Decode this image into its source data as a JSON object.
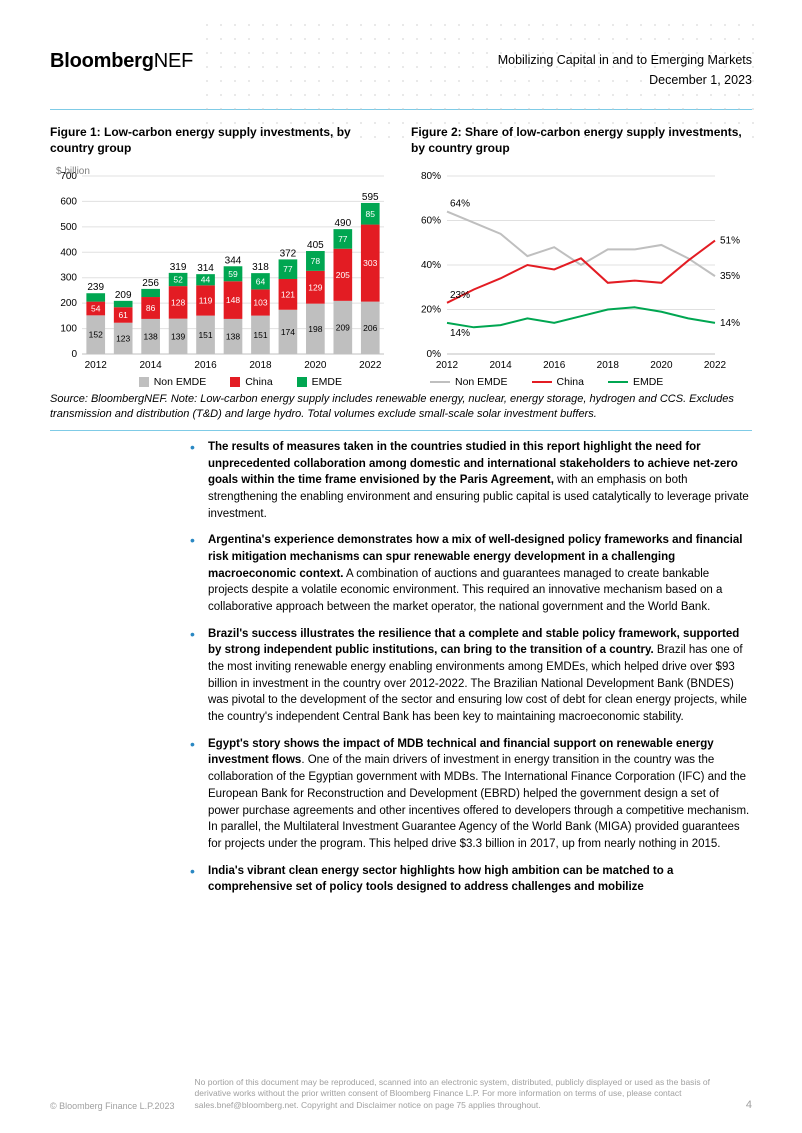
{
  "header": {
    "logo_bold": "Bloomberg",
    "logo_light": "NEF",
    "title": "Mobilizing Capital in and to Emerging Markets",
    "date": "December 1, 2023"
  },
  "figure1": {
    "title": "Figure 1: Low-carbon energy supply investments, by country group",
    "type": "stacked-bar",
    "ylabel": "$ billion",
    "ylim": [
      0,
      700
    ],
    "ytick_step": 100,
    "years": [
      2012,
      2013,
      2014,
      2015,
      2016,
      2017,
      2018,
      2019,
      2020,
      2021,
      2022
    ],
    "xticks_shown": [
      2012,
      2014,
      2016,
      2018,
      2020,
      2022
    ],
    "series": {
      "non_emde": {
        "label": "Non EMDE",
        "color": "#bfbfbf",
        "v": [
          152,
          123,
          138,
          139,
          151,
          138,
          151,
          174,
          198,
          209,
          206
        ]
      },
      "china": {
        "label": "China",
        "color": "#e31c23",
        "v": [
          54,
          61,
          86,
          128,
          119,
          148,
          103,
          121,
          129,
          205,
          303
        ]
      },
      "emde": {
        "label": "EMDE",
        "color": "#00a651",
        "v": [
          33,
          25,
          32,
          52,
          44,
          59,
          64,
          77,
          78,
          77,
          85
        ]
      }
    },
    "totals": [
      239,
      209,
      256,
      319,
      314,
      344,
      318,
      372,
      405,
      490,
      595
    ],
    "bar_width_ratio": 0.68,
    "bg": "#ffffff",
    "grid_color": "#e0e0e0",
    "baseline_color": "#bfbfbf",
    "tick_font": 10,
    "label_font": 8.5
  },
  "figure2": {
    "title": "Figure 2: Share of low-carbon energy supply investments, by country group",
    "type": "line",
    "ylim": [
      0,
      80
    ],
    "ytick_step": 20,
    "ysuffix": "%",
    "years": [
      2012,
      2013,
      2014,
      2015,
      2016,
      2017,
      2018,
      2019,
      2020,
      2021,
      2022
    ],
    "xticks_shown": [
      2012,
      2014,
      2016,
      2018,
      2020,
      2022
    ],
    "series": {
      "non_emde": {
        "label": "Non EMDE",
        "color": "#bfbfbf",
        "v": [
          64,
          59,
          54,
          44,
          48,
          40,
          47,
          47,
          49,
          43,
          35
        ]
      },
      "china": {
        "label": "China",
        "color": "#e31c23",
        "v": [
          23,
          29,
          34,
          40,
          38,
          43,
          32,
          33,
          32,
          42,
          51
        ]
      },
      "emde": {
        "label": "EMDE",
        "color": "#00a651",
        "v": [
          14,
          12,
          13,
          16,
          14,
          17,
          20,
          21,
          19,
          16,
          14
        ]
      }
    },
    "start_labels": {
      "non_emde": "64%",
      "china": "23%",
      "emde": "14%"
    },
    "end_labels": {
      "non_emde": "35%",
      "china": "51%",
      "emde": "14%"
    },
    "line_width": 2,
    "bg": "#ffffff",
    "grid_color": "#e0e0e0",
    "baseline_color": "#bfbfbf",
    "tick_font": 10
  },
  "legend": {
    "items": [
      {
        "label": "Non EMDE",
        "color": "#bfbfbf"
      },
      {
        "label": "China",
        "color": "#e31c23"
      },
      {
        "label": "EMDE",
        "color": "#00a651"
      }
    ]
  },
  "source_note": "Source: BloombergNEF. Note: Low-carbon energy supply includes renewable energy, nuclear, energy storage, hydrogen and CCS. Excludes transmission and distribution (T&D) and large hydro. Total volumes exclude small-scale solar investment buffers.",
  "bullets": [
    {
      "bold": "The results of measures taken in the countries studied in this report highlight the need for unprecedented collaboration among domestic and international stakeholders to achieve net-zero goals within the time frame envisioned by the Paris Agreement,",
      "rest": " with an emphasis on both strengthening the enabling environment and ensuring public capital is used catalytically to leverage private investment."
    },
    {
      "bold": "Argentina's experience demonstrates how a mix of well-designed policy frameworks and financial risk mitigation mechanisms can spur renewable energy development in a challenging macroeconomic context.",
      "rest": " A combination of auctions and guarantees managed to create bankable projects despite a volatile economic environment. This required an innovative mechanism based on a collaborative approach between the market operator, the national government and the World Bank."
    },
    {
      "bold": "Brazil's success illustrates the resilience that a complete and stable policy framework, supported by strong independent public institutions, can bring to the transition of a country.",
      "rest": " Brazil has one of the most inviting renewable energy enabling environments among EMDEs, which helped drive over $93 billion in investment in the country over 2012-2022. The Brazilian National Development Bank (BNDES) was pivotal to the development of the sector and ensuring low cost of debt for clean energy projects, while the country's independent Central Bank has been key to maintaining macroeconomic stability."
    },
    {
      "bold": "Egypt's story shows the impact of MDB technical and financial support on renewable energy investment flows",
      "rest": ". One of the main drivers of investment in energy transition in the country was the collaboration of the Egyptian government with MDBs. The International Finance Corporation (IFC) and the European Bank for Reconstruction and Development (EBRD) helped the government design a set of power purchase agreements and other incentives offered to developers through a competitive mechanism. In parallel, the Multilateral Investment Guarantee Agency of the World Bank (MIGA) provided guarantees for projects under the program. This helped drive $3.3 billion in 2017, up from nearly nothing in 2015."
    },
    {
      "bold": "India's vibrant clean energy sector highlights how high ambition can be matched to a comprehensive set of policy tools designed to address challenges and mobilize",
      "rest": ""
    }
  ],
  "footer": {
    "copyright": "© Bloomberg Finance L.P.2023",
    "disclaimer": "No portion of this document may be reproduced, scanned into an electronic system, distributed, publicly displayed or used as the basis of derivative works without the prior written consent of Bloomberg Finance L.P.  For more information on terms of use, please contact sales.bnef@bloomberg.net. Copyright and Disclaimer notice on page 75 applies throughout.",
    "page": "4"
  }
}
